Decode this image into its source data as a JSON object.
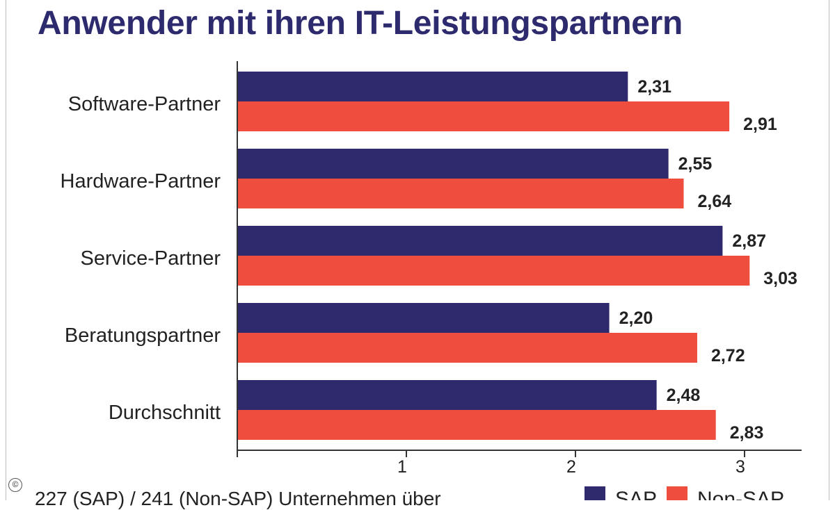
{
  "title": "Anwender mit ihren IT-Leistungspartnern",
  "footnote": "227 (SAP) / 241 (Non-SAP) Unternehmen über",
  "copyright_symbol": "©",
  "chart_data": {
    "type": "bar",
    "orientation": "horizontal",
    "title": "Anwender mit ihren IT-Leistungspartnern",
    "categories": [
      "Software-Partner",
      "Hardware-Partner",
      "Service-Partner",
      "Beratungspartner",
      "Durchschnitt"
    ],
    "series": [
      {
        "name": "SAP",
        "color": "#2f2a6e",
        "values": [
          2.31,
          2.55,
          2.87,
          2.2,
          2.48
        ],
        "labels": [
          "2,31",
          "2,55",
          "2,87",
          "2,20",
          "2,48"
        ]
      },
      {
        "name": "Non-SAP",
        "color": "#ef4e3e",
        "values": [
          2.91,
          2.64,
          3.03,
          2.72,
          2.83
        ],
        "labels": [
          "2,91",
          "2,64",
          "3,03",
          "2,72",
          "2,83"
        ]
      }
    ],
    "xlim": [
      0,
      3.3
    ],
    "xticks": [
      1,
      2,
      3
    ],
    "xtick_labels": [
      "1",
      "2",
      "3"
    ],
    "grid": false,
    "legend": "bottom-right"
  }
}
